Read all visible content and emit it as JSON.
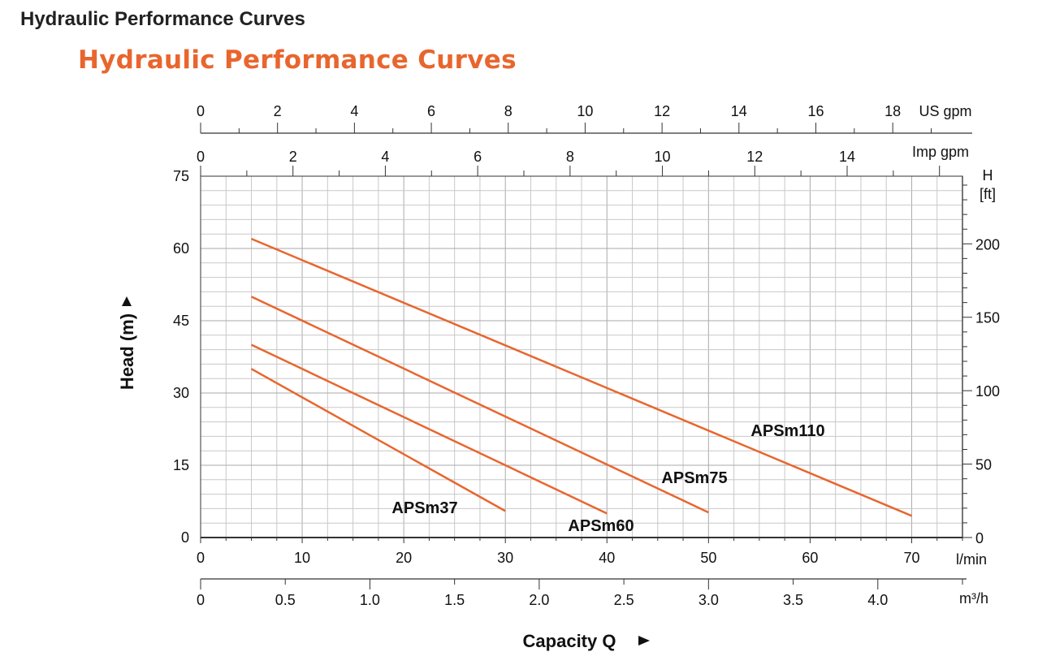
{
  "page_title": "Hydraulic Performance Curves",
  "colors": {
    "curve": "#E8662E",
    "title_accent": "#E8662E",
    "grid": "#c8c8c8",
    "axis": "#555555"
  },
  "chart_data": {
    "type": "line",
    "title": "Hydraulic Performance Curves",
    "xlabel": "Capacity Q",
    "ylabel": "Head (m)",
    "x_unit": "l/min",
    "xlim": [
      0,
      75
    ],
    "ylim": [
      0,
      75
    ],
    "x_ticks": [
      "0",
      "10",
      "20",
      "30",
      "40",
      "50",
      "60",
      "70"
    ],
    "y_ticks": [
      "0",
      "15",
      "30",
      "45",
      "60",
      "75"
    ],
    "secondary_axes": {
      "head_ft": {
        "label_line1": "H",
        "label_line2": "[ft]",
        "ticks": [
          0,
          50,
          100,
          150,
          200
        ],
        "tick_labels": [
          "0",
          "50",
          "100",
          "150",
          "200"
        ]
      },
      "us_gpm": {
        "unit": "US gpm",
        "ticks": [
          0,
          2,
          4,
          6,
          8,
          10,
          12,
          14,
          16,
          18
        ],
        "tick_labels": [
          "0",
          "2",
          "4",
          "6",
          "8",
          "10",
          "12",
          "14",
          "16",
          "18"
        ]
      },
      "imp_gpm": {
        "unit": "Imp gpm",
        "ticks": [
          0,
          2,
          4,
          6,
          8,
          10,
          12,
          14
        ],
        "tick_labels": [
          "0",
          "2",
          "4",
          "6",
          "8",
          "10",
          "12",
          "14"
        ]
      },
      "m3h": {
        "unit": "m³/h",
        "ticks": [
          0,
          0.5,
          1.0,
          1.5,
          2.0,
          2.5,
          3.0,
          3.5,
          4.0
        ],
        "tick_labels": [
          "0",
          "0.5",
          "1.0",
          "1.5",
          "2.0",
          "2.5",
          "3.0",
          "3.5",
          "4.0"
        ]
      }
    },
    "grid": true,
    "series": [
      {
        "name": "APSm37",
        "x": [
          5,
          30
        ],
        "y": [
          35,
          5.5
        ]
      },
      {
        "name": "APSm60",
        "x": [
          5,
          40
        ],
        "y": [
          40,
          5
        ]
      },
      {
        "name": "APSm75",
        "x": [
          5,
          50
        ],
        "y": [
          50,
          5.2
        ]
      },
      {
        "name": "APSm110",
        "x": [
          5,
          70
        ],
        "y": [
          62,
          4.5
        ]
      }
    ]
  }
}
